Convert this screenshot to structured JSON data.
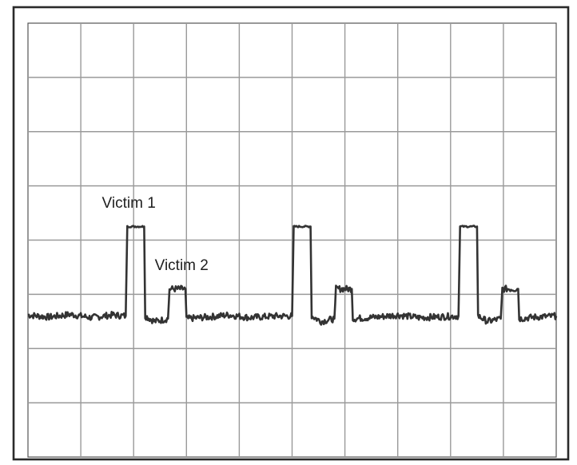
{
  "chart_data": {
    "type": "line",
    "title": "",
    "xlabel": "",
    "ylabel": "",
    "grid": true,
    "grid_divisions": {
      "x": 10,
      "y": 8
    },
    "xlim": [
      0,
      10
    ],
    "ylim": [
      0,
      8
    ],
    "baseline": 2.6,
    "series": [
      {
        "points": [
          [
            0,
            2.62
          ],
          [
            0.4,
            2.58
          ],
          [
            0.8,
            2.63
          ],
          [
            1.2,
            2.57
          ],
          [
            1.6,
            2.62
          ],
          [
            1.85,
            2.6
          ],
          [
            1.88,
            4.25
          ],
          [
            2.2,
            4.25
          ],
          [
            2.22,
            2.6
          ],
          [
            2.4,
            2.5
          ],
          [
            2.65,
            2.55
          ],
          [
            2.68,
            3.1
          ],
          [
            2.98,
            3.1
          ],
          [
            3.0,
            2.55
          ],
          [
            3.4,
            2.58
          ],
          [
            3.8,
            2.62
          ],
          [
            4.2,
            2.57
          ],
          [
            4.7,
            2.6
          ],
          [
            5.0,
            2.6
          ],
          [
            5.03,
            4.25
          ],
          [
            5.35,
            4.25
          ],
          [
            5.37,
            2.6
          ],
          [
            5.55,
            2.5
          ],
          [
            5.8,
            2.55
          ],
          [
            5.83,
            3.1
          ],
          [
            6.13,
            3.1
          ],
          [
            6.15,
            2.55
          ],
          [
            6.6,
            2.58
          ],
          [
            7.0,
            2.62
          ],
          [
            7.4,
            2.57
          ],
          [
            8.15,
            2.6
          ],
          [
            8.18,
            4.25
          ],
          [
            8.5,
            4.25
          ],
          [
            8.52,
            2.6
          ],
          [
            8.7,
            2.5
          ],
          [
            8.95,
            2.55
          ],
          [
            8.98,
            3.1
          ],
          [
            9.28,
            3.1
          ],
          [
            9.3,
            2.55
          ],
          [
            9.6,
            2.58
          ],
          [
            10,
            2.6
          ]
        ]
      }
    ],
    "annotations": [
      {
        "text": "Victim 1",
        "x": 1.4,
        "y": 4.6
      },
      {
        "text": "Victim 2",
        "x": 2.4,
        "y": 3.45
      }
    ]
  }
}
